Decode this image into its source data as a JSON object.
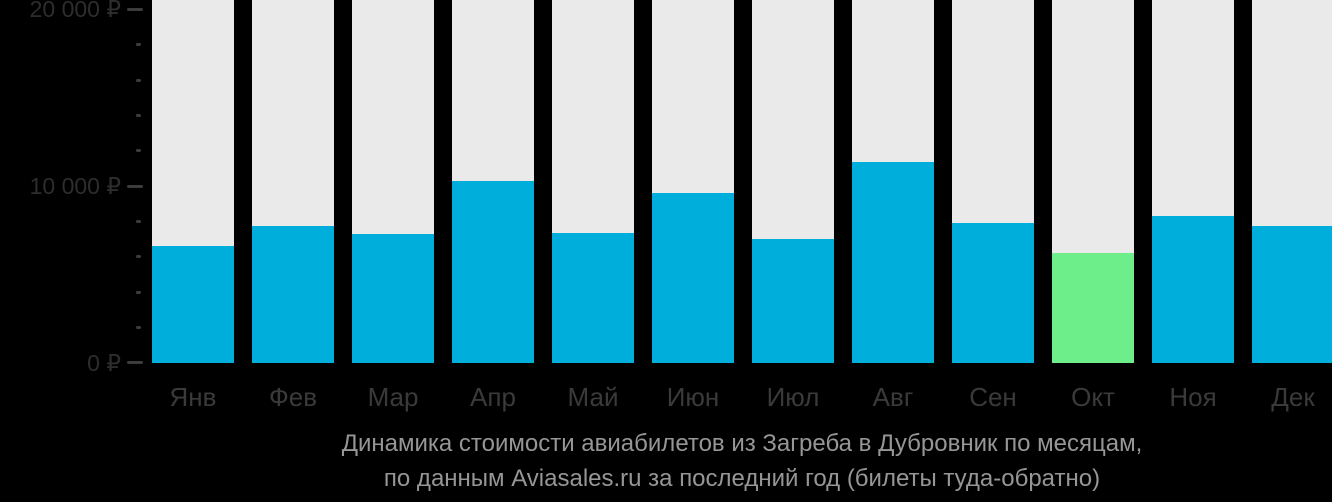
{
  "chart_data": {
    "type": "bar",
    "categories": [
      "Янв",
      "Фев",
      "Мар",
      "Апр",
      "Май",
      "Июн",
      "Июл",
      "Авг",
      "Сен",
      "Окт",
      "Ноя",
      "Дек"
    ],
    "values": [
      6600,
      7750,
      7300,
      10300,
      7350,
      9650,
      7000,
      11400,
      7900,
      6200,
      8350,
      7750
    ],
    "unit": "₽",
    "highlight_index": 9,
    "ylim": [
      0,
      20550
    ],
    "yticks_major": [
      {
        "value": 0,
        "label": "0 ₽"
      },
      {
        "value": 10000,
        "label": "10 000 ₽"
      },
      {
        "value": 20000,
        "label": "20 000 ₽"
      }
    ],
    "yticks_minor": [
      2000,
      4000,
      6000,
      8000,
      12000,
      14000,
      16000,
      18000
    ],
    "grid": false,
    "legend": "none",
    "title": "Динамика стоимости авиабилетов из Загреба в Дубровник по месяцам, по данным Aviasales.ru за последний год (билеты туда-обратно)"
  },
  "caption": {
    "line1": "Динамика стоимости авиабилетов из Загреба в Дубровник по месяцам,",
    "line2": "по данным Aviasales.ru за последний год (билеты туда-обратно)"
  },
  "colors": {
    "background": "#000000",
    "bar": "#00AEDC",
    "bar_highlight": "#6DEE8A",
    "column_background": "#EAEAEA",
    "y_axis_label": "#2D2D2D",
    "x_axis_label": "#3A3A3A",
    "tick": "#3C3C3C",
    "caption_text": "#969696"
  }
}
